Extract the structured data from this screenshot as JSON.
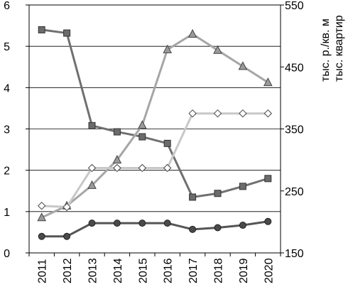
{
  "chart_data": {
    "type": "line",
    "categories": [
      "2011",
      "2012",
      "2013",
      "2014",
      "2015",
      "2016",
      "2017",
      "2018",
      "2019",
      "2020"
    ],
    "y_left": {
      "range": [
        0,
        6
      ],
      "ticks": [
        0,
        1,
        2,
        3,
        4,
        5,
        6
      ],
      "tick_labels": [
        "0",
        "1",
        "2",
        "3",
        "4",
        "5",
        "6"
      ]
    },
    "y_right": {
      "range": [
        150,
        550
      ],
      "ticks": [
        150,
        250,
        350,
        450,
        550
      ],
      "tick_labels": [
        "150",
        "250",
        "350",
        "450",
        "550"
      ],
      "labels": [
        "тыс. р./кв. м",
        "тыс. квартир"
      ]
    },
    "grid": "horizontal",
    "series": [
      {
        "axis": "left",
        "marker": "square",
        "color": "#707070",
        "values": [
          5.4,
          5.32,
          3.08,
          2.93,
          2.81,
          2.65,
          1.35,
          1.44,
          1.61,
          1.8
        ]
      },
      {
        "axis": "left",
        "marker": "circle",
        "color": "#555555",
        "values": [
          0.4,
          0.4,
          0.72,
          0.72,
          0.72,
          0.72,
          0.57,
          0.61,
          0.67,
          0.76
        ]
      },
      {
        "axis": "right",
        "marker": "triangle",
        "color": "#a6a6a6",
        "values": [
          207,
          226,
          259,
          300,
          356,
          478,
          503,
          477,
          451,
          425
        ]
      },
      {
        "axis": "right",
        "marker": "diamond",
        "color": "#c8c8c8",
        "values": [
          226,
          224,
          287,
          287,
          287,
          287,
          375,
          375,
          375,
          375
        ]
      }
    ]
  }
}
